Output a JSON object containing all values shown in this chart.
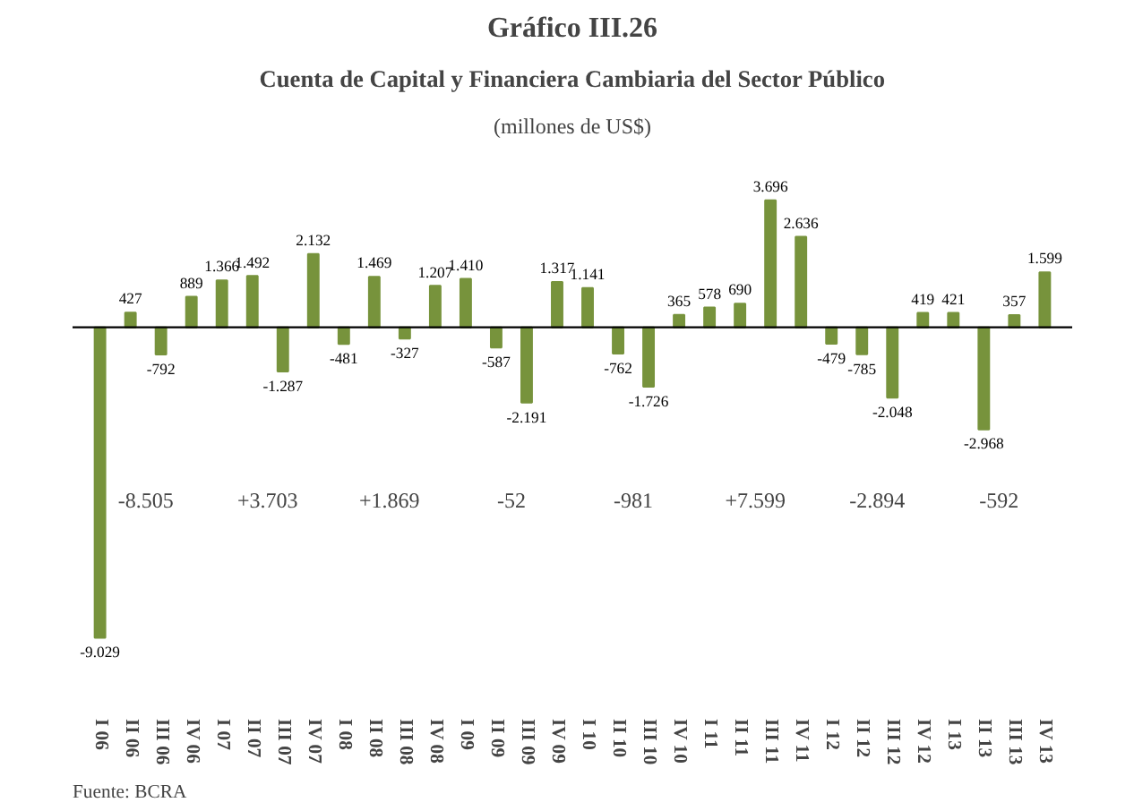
{
  "chart_data": {
    "type": "bar",
    "title": "Gráfico III.26",
    "subtitle": "Cuenta de Capital y Financiera Cambiaria del Sector Público",
    "categories": [
      "I 06",
      "II 06",
      "III 06",
      "IV 06",
      "I 07",
      "II 07",
      "III 07",
      "IV 07",
      "I 08",
      "II 08",
      "III 08",
      "IV 08",
      "I 09",
      "II 09",
      "III 09",
      "IV 09",
      "I 10",
      "II 10",
      "III 10",
      "IV 10",
      "I 11",
      "II 11",
      "III 11",
      "IV 11",
      "I 12",
      "II 12",
      "III 12",
      "IV 12",
      "I 13",
      "II 13",
      "III 13",
      "IV 13"
    ],
    "values": [
      -9029,
      427,
      -792,
      889,
      1366,
      1492,
      -1287,
      2132,
      -481,
      1469,
      -327,
      1207,
      1410,
      -587,
      -2191,
      1317,
      1141,
      -762,
      -1726,
      365,
      578,
      690,
      3696,
      2636,
      -479,
      -785,
      -2048,
      419,
      421,
      -2968,
      357,
      1599
    ],
    "value_labels": [
      "-9.029",
      "427",
      "-792",
      "889",
      "1.366",
      "1.492",
      "-1.287",
      "2.132",
      "-481",
      "1.469",
      "-327",
      "1.207",
      "1.410",
      "-587",
      "-2.191",
      "1.317",
      "1.141",
      "-762",
      "-1.726",
      "365",
      "578",
      "690",
      "3.696",
      "2.636",
      "-479",
      "-785",
      "-2.048",
      "419",
      "421",
      "-2.968",
      "357",
      "1.599"
    ],
    "color": "#77933c",
    "annotations": [
      "(millones de US$)",
      "-8.505",
      "+3.703",
      "+1.869",
      "-52",
      "-981",
      "+7.599",
      "-2.894",
      "-592",
      "Fuente: BCRA"
    ],
    "ref_lines": [
      {
        "axis": "y",
        "value": 0,
        "color": "#000000",
        "line_style": "solid"
      }
    ],
    "grid": false
  }
}
